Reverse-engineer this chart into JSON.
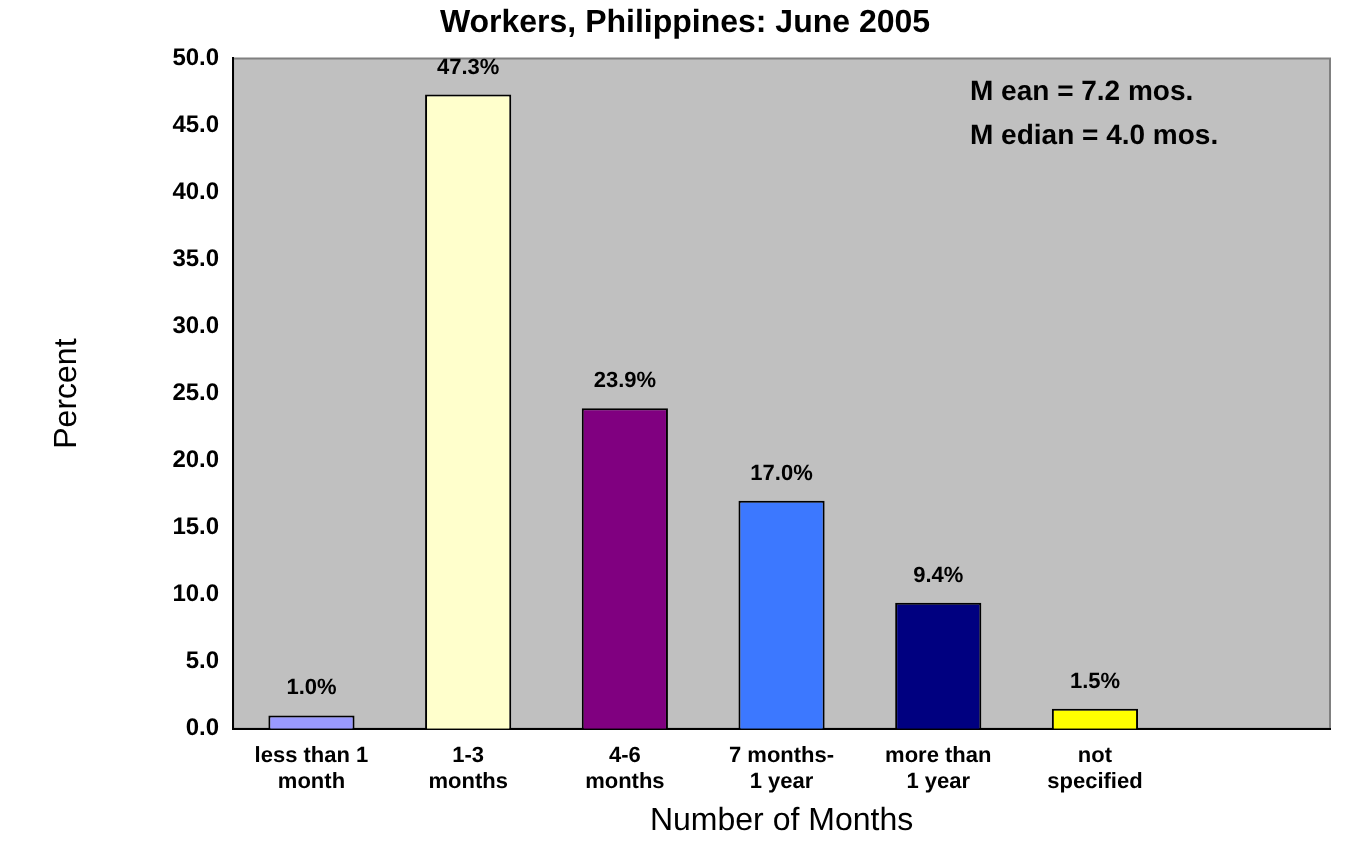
{
  "chart_data": {
    "type": "bar",
    "title": "Workers, Philippines: June 2005",
    "xlabel": "Number of Months",
    "ylabel": "Percent",
    "categories": [
      "less than 1 month",
      "1-3 months",
      "4-6 months",
      "7 months-1 year",
      "more than 1 year",
      "not specified",
      null
    ],
    "values": [
      1.0,
      47.3,
      23.9,
      17.0,
      9.4,
      1.5,
      null
    ],
    "colors": [
      "#9999ff",
      "#ffffcc",
      "#800080",
      "#3c78ff",
      "#000080",
      "#ffff00",
      "#000000"
    ],
    "value_labels": [
      "1.0%",
      "47.3%",
      "23.9%",
      "17.0%",
      "9.4%",
      "1.5%",
      null
    ],
    "ylim": [
      0,
      50
    ],
    "yticks": [
      "0.0",
      "5.0",
      "10.0",
      "15.0",
      "20.0",
      "25.0",
      "30.0",
      "35.0",
      "40.0",
      "45.0",
      "50.0"
    ],
    "annotations": [
      "M ean = 7.2 mos.",
      "M edian = 4.0 mos."
    ],
    "grid": false,
    "legend": false
  }
}
